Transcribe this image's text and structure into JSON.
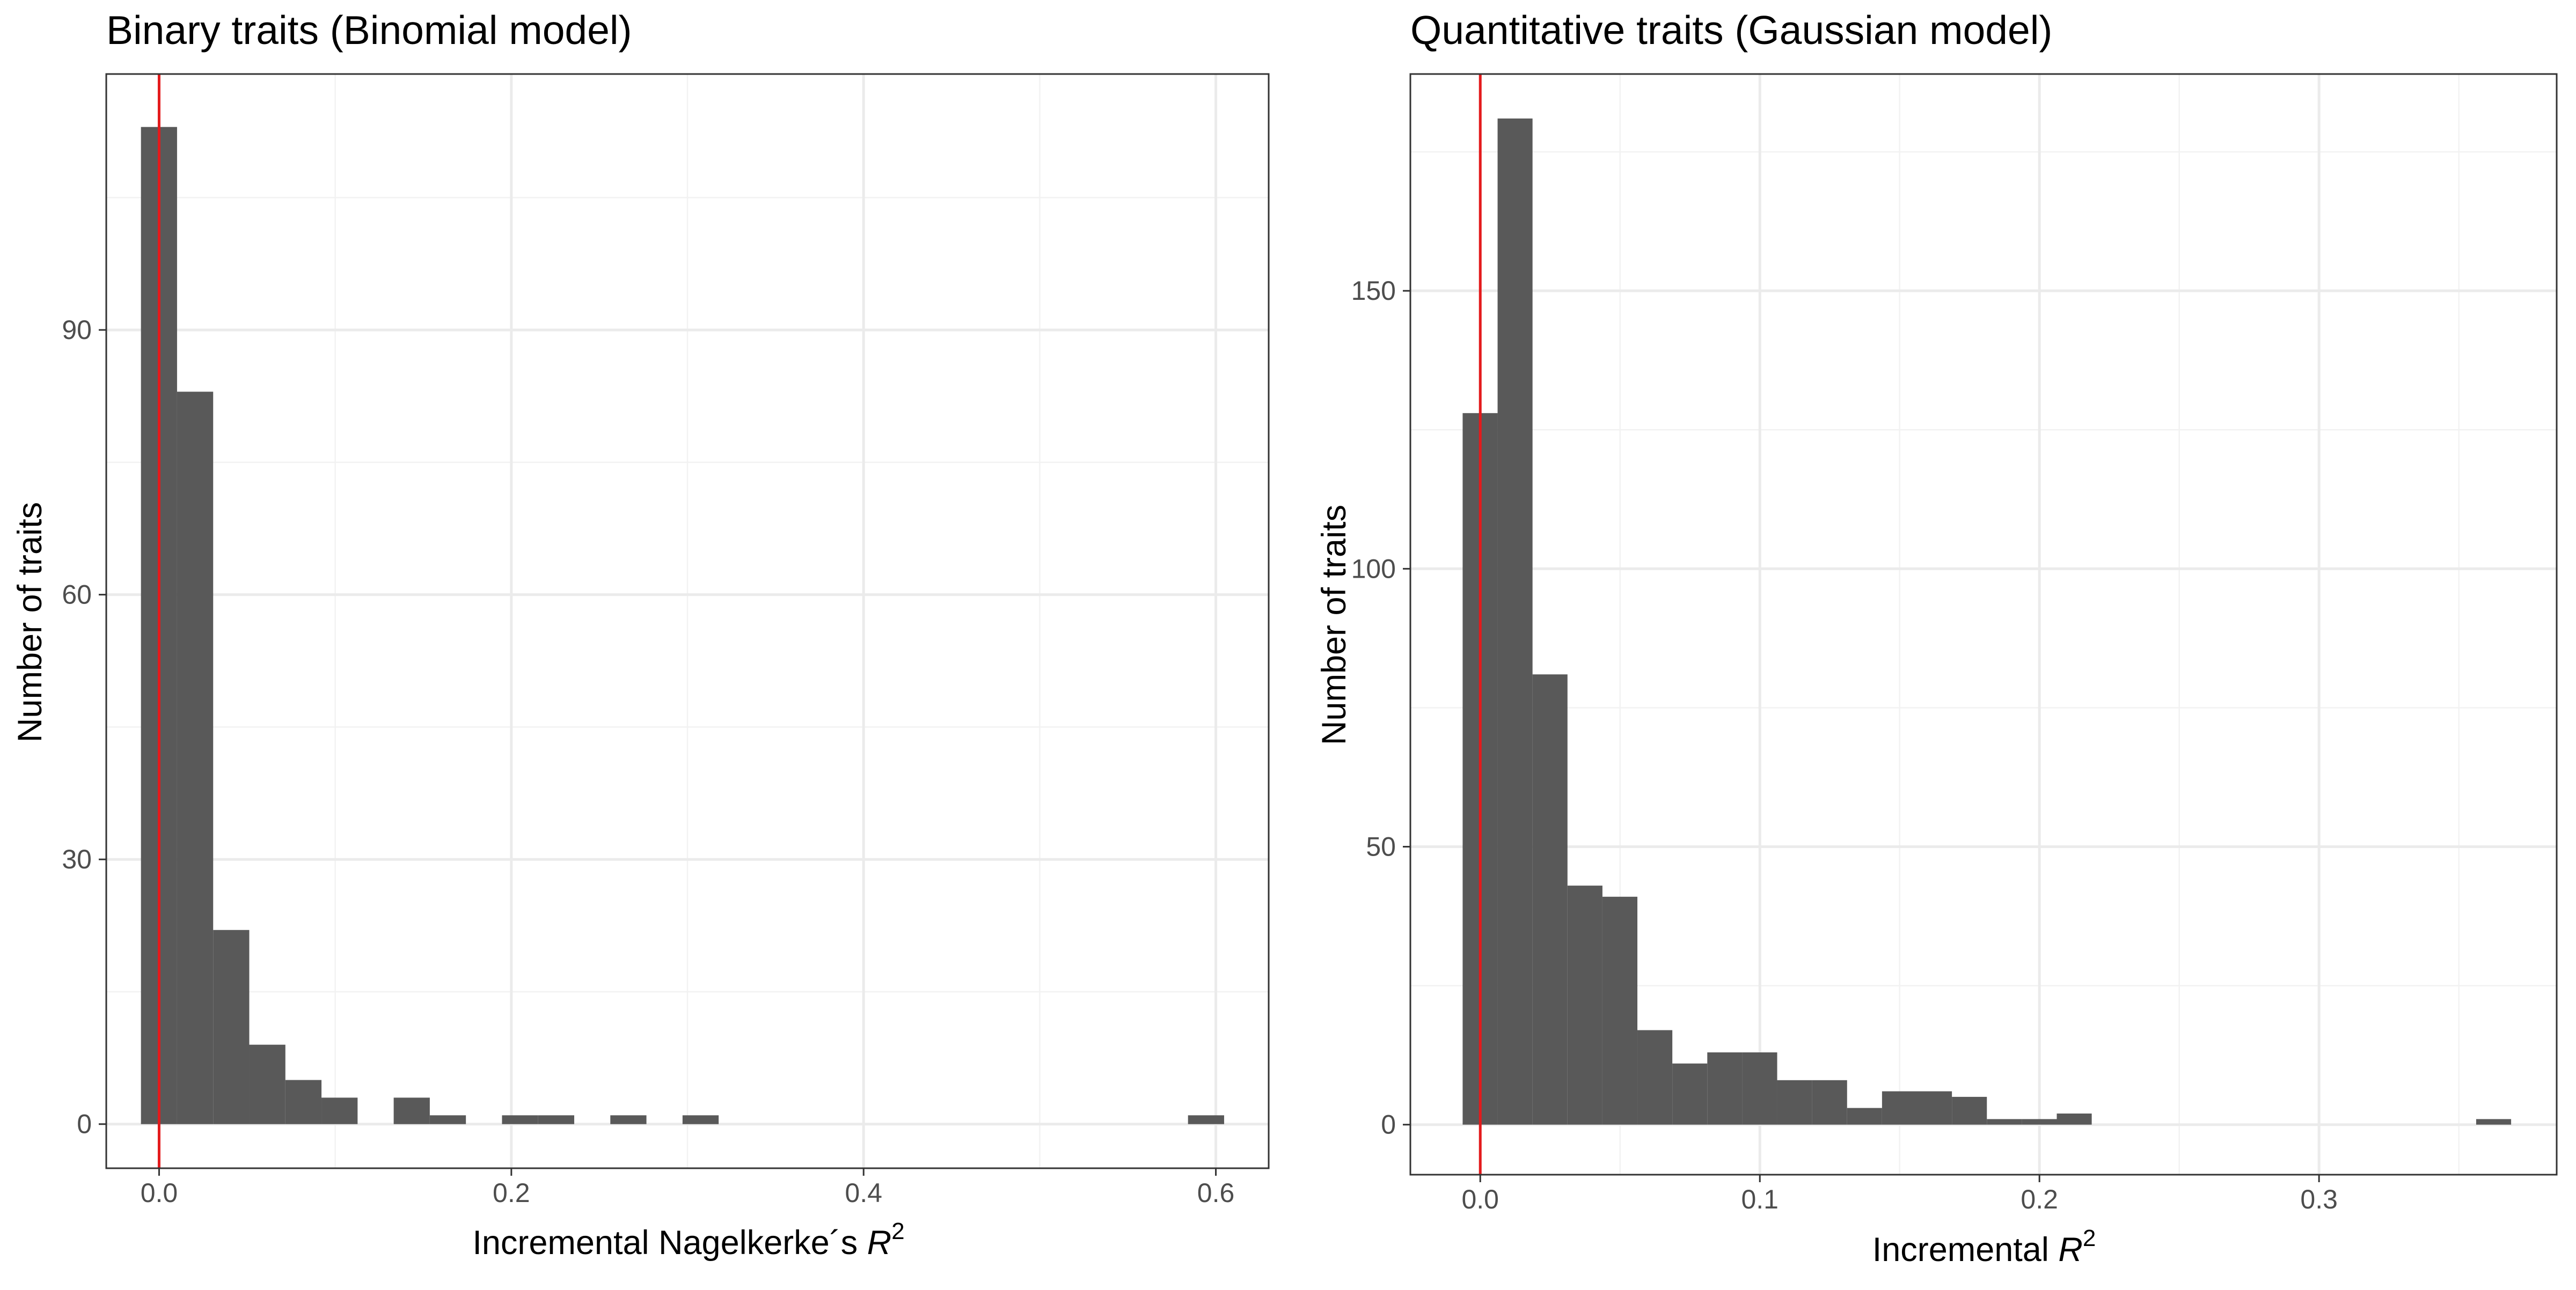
{
  "chart_data": [
    {
      "type": "bar",
      "title": "Binary traits (Binomial model)",
      "xlabel": "Incremental Nagelkerke's R²",
      "xlabel_main": "Incremental Nagelkerke´s ",
      "xlabel_var": "R",
      "xlabel_sup": "2",
      "ylabel": "Number of traits",
      "xlim": [
        -0.03,
        0.63
      ],
      "ylim": [
        -5,
        119
      ],
      "x_ticks": [
        0.0,
        0.2,
        0.4,
        0.6
      ],
      "x_tick_labels": [
        "0.0",
        "0.2",
        "0.4",
        "0.6"
      ],
      "y_ticks": [
        0,
        30,
        60,
        90
      ],
      "y_tick_labels": [
        "0",
        "30",
        "60",
        "90"
      ],
      "reference_line_x": 0.0,
      "reference_line_color": "#e41a1c",
      "bar_color": "#595959",
      "grid": true,
      "bin_width": 0.0205,
      "bins": [
        {
          "x0": -0.0103,
          "x1": 0.0102,
          "count": 113
        },
        {
          "x0": 0.0102,
          "x1": 0.0307,
          "count": 83
        },
        {
          "x0": 0.0307,
          "x1": 0.0512,
          "count": 22
        },
        {
          "x0": 0.0512,
          "x1": 0.0717,
          "count": 9
        },
        {
          "x0": 0.0717,
          "x1": 0.0922,
          "count": 5
        },
        {
          "x0": 0.0922,
          "x1": 0.1127,
          "count": 3
        },
        {
          "x0": 0.1332,
          "x1": 0.1537,
          "count": 3
        },
        {
          "x0": 0.1537,
          "x1": 0.1742,
          "count": 1
        },
        {
          "x0": 0.1947,
          "x1": 0.2152,
          "count": 1
        },
        {
          "x0": 0.2152,
          "x1": 0.2357,
          "count": 1
        },
        {
          "x0": 0.2562,
          "x1": 0.2767,
          "count": 1
        },
        {
          "x0": 0.2972,
          "x1": 0.3177,
          "count": 1
        },
        {
          "x0": 0.5842,
          "x1": 0.6047,
          "count": 1
        }
      ]
    },
    {
      "type": "bar",
      "title": "Quantitative traits (Gaussian model)",
      "xlabel": "Incremental R²",
      "xlabel_main": "Incremental ",
      "xlabel_var": "R",
      "xlabel_sup": "2",
      "ylabel": "Number of traits",
      "xlim": [
        -0.025,
        0.385
      ],
      "ylim": [
        -9,
        189
      ],
      "x_ticks": [
        0.0,
        0.1,
        0.2,
        0.3
      ],
      "x_tick_labels": [
        "0.0",
        "0.1",
        "0.2",
        "0.3"
      ],
      "y_ticks": [
        0,
        50,
        100,
        150
      ],
      "y_tick_labels": [
        "0",
        "50",
        "100",
        "150"
      ],
      "reference_line_x": 0.0,
      "reference_line_color": "#e41a1c",
      "bar_color": "#595959",
      "grid": true,
      "bin_width": 0.0125,
      "bins": [
        {
          "x0": -0.0063,
          "x1": 0.0062,
          "count": 128
        },
        {
          "x0": 0.0062,
          "x1": 0.0187,
          "count": 181
        },
        {
          "x0": 0.0187,
          "x1": 0.0312,
          "count": 81
        },
        {
          "x0": 0.0312,
          "x1": 0.0437,
          "count": 43
        },
        {
          "x0": 0.0437,
          "x1": 0.0562,
          "count": 41
        },
        {
          "x0": 0.0562,
          "x1": 0.0687,
          "count": 17
        },
        {
          "x0": 0.0687,
          "x1": 0.0812,
          "count": 11
        },
        {
          "x0": 0.0812,
          "x1": 0.0937,
          "count": 13
        },
        {
          "x0": 0.0937,
          "x1": 0.1062,
          "count": 13
        },
        {
          "x0": 0.1062,
          "x1": 0.1187,
          "count": 8
        },
        {
          "x0": 0.1187,
          "x1": 0.1312,
          "count": 8
        },
        {
          "x0": 0.1312,
          "x1": 0.1437,
          "count": 3
        },
        {
          "x0": 0.1437,
          "x1": 0.1562,
          "count": 6
        },
        {
          "x0": 0.1562,
          "x1": 0.1687,
          "count": 6
        },
        {
          "x0": 0.1687,
          "x1": 0.1812,
          "count": 5
        },
        {
          "x0": 0.1812,
          "x1": 0.1937,
          "count": 1
        },
        {
          "x0": 0.1937,
          "x1": 0.2062,
          "count": 1
        },
        {
          "x0": 0.2062,
          "x1": 0.2187,
          "count": 2
        },
        {
          "x0": 0.3562,
          "x1": 0.3687,
          "count": 1
        }
      ]
    }
  ]
}
